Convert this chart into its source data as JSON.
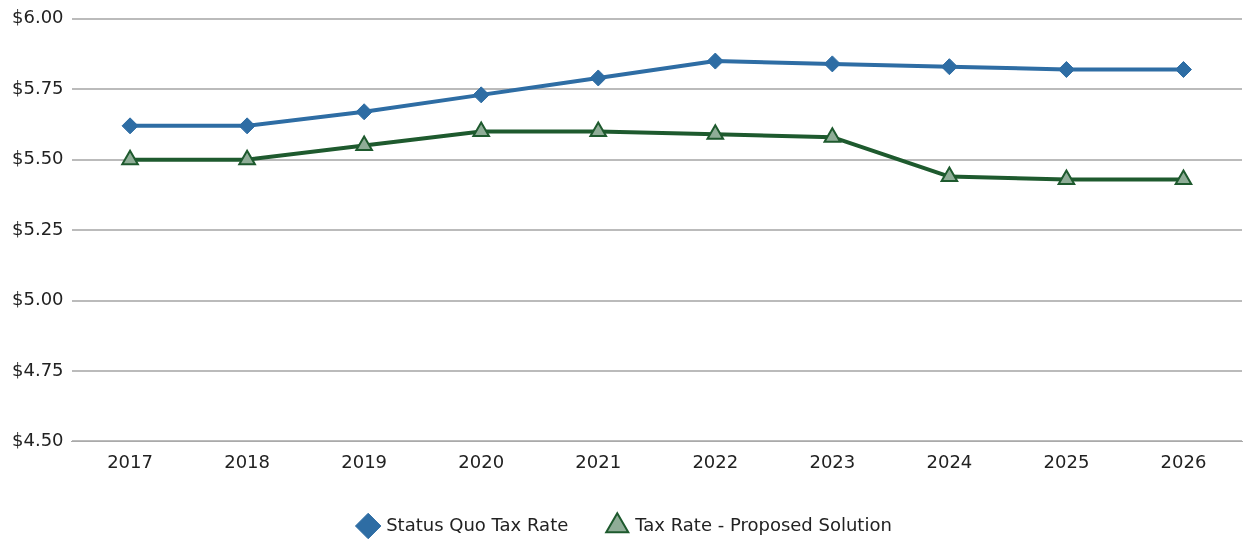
{
  "chart_data": {
    "type": "line",
    "categories": [
      "2017",
      "2018",
      "2019",
      "2020",
      "2021",
      "2022",
      "2023",
      "2024",
      "2025",
      "2026"
    ],
    "series": [
      {
        "name": "Status Quo Tax Rate",
        "color": "#2e6da4",
        "marker": "diamond",
        "values": [
          5.62,
          5.62,
          5.67,
          5.73,
          5.79,
          5.85,
          5.84,
          5.83,
          5.82,
          5.82
        ]
      },
      {
        "name": "Tax Rate - Proposed Solution",
        "color": "#1e5a2e",
        "marker": "triangle",
        "values": [
          5.5,
          5.5,
          5.55,
          5.6,
          5.6,
          5.59,
          5.58,
          5.44,
          5.43,
          5.43
        ]
      }
    ],
    "ylim": [
      4.5,
      6.0
    ],
    "yticks": [
      {
        "value": 4.5,
        "label": "$4.50"
      },
      {
        "value": 4.75,
        "label": "$4.75"
      },
      {
        "value": 5.0,
        "label": "$5.00"
      },
      {
        "value": 5.25,
        "label": "$5.25"
      },
      {
        "value": 5.5,
        "label": "$5.50"
      },
      {
        "value": 5.75,
        "label": "$5.75"
      },
      {
        "value": 6.0,
        "label": "$6.00"
      }
    ],
    "grid": "y",
    "legend": "bottom"
  }
}
